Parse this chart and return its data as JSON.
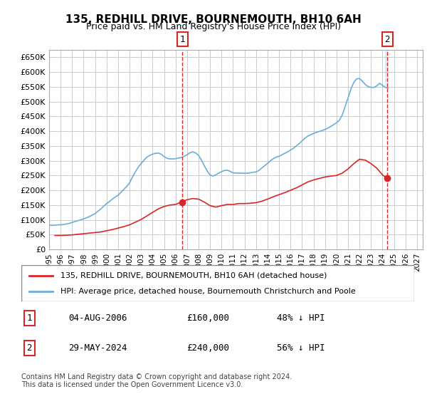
{
  "title": "135, REDHILL DRIVE, BOURNEMOUTH, BH10 6AH",
  "subtitle": "Price paid vs. HM Land Registry's House Price Index (HPI)",
  "hpi_color": "#6baed6",
  "price_color": "#d62728",
  "marker_color": "#d62728",
  "annotation_box_color": "#d62728",
  "grid_color": "#cccccc",
  "background_color": "#ffffff",
  "plot_background": "#ffffff",
  "ylim": [
    0,
    675000
  ],
  "yticks": [
    0,
    50000,
    100000,
    150000,
    200000,
    250000,
    300000,
    350000,
    400000,
    450000,
    500000,
    550000,
    600000,
    650000
  ],
  "xlim_start": 1995.0,
  "xlim_end": 2027.5,
  "xticks": [
    1995,
    1996,
    1997,
    1998,
    1999,
    2000,
    2001,
    2002,
    2003,
    2004,
    2005,
    2006,
    2007,
    2008,
    2009,
    2010,
    2011,
    2012,
    2013,
    2014,
    2015,
    2016,
    2017,
    2018,
    2019,
    2020,
    2021,
    2022,
    2023,
    2024,
    2025,
    2026,
    2027
  ],
  "legend_entries": [
    "135, REDHILL DRIVE, BOURNEMOUTH, BH10 6AH (detached house)",
    "HPI: Average price, detached house, Bournemouth Christchurch and Poole"
  ],
  "annotation1": {
    "label": "1",
    "x": 2006.58,
    "price_y": 160000,
    "hpi_y": 305000
  },
  "annotation2": {
    "label": "2",
    "x": 2024.41,
    "price_y": 240000,
    "hpi_y": 545000
  },
  "table": [
    {
      "num": "1",
      "date": "04-AUG-2006",
      "price": "£160,000",
      "pct": "48% ↓ HPI"
    },
    {
      "num": "2",
      "date": "29-MAY-2024",
      "price": "£240,000",
      "pct": "56% ↓ HPI"
    }
  ],
  "footer": "Contains HM Land Registry data © Crown copyright and database right 2024.\nThis data is licensed under the Open Government Licence v3.0.",
  "hpi_data_x": [
    1995.0,
    1995.25,
    1995.5,
    1995.75,
    1996.0,
    1996.25,
    1996.5,
    1996.75,
    1997.0,
    1997.25,
    1997.5,
    1997.75,
    1998.0,
    1998.25,
    1998.5,
    1998.75,
    1999.0,
    1999.25,
    1999.5,
    1999.75,
    2000.0,
    2000.25,
    2000.5,
    2000.75,
    2001.0,
    2001.25,
    2001.5,
    2001.75,
    2002.0,
    2002.25,
    2002.5,
    2002.75,
    2003.0,
    2003.25,
    2003.5,
    2003.75,
    2004.0,
    2004.25,
    2004.5,
    2004.75,
    2005.0,
    2005.25,
    2005.5,
    2005.75,
    2006.0,
    2006.25,
    2006.5,
    2006.75,
    2007.0,
    2007.25,
    2007.5,
    2007.75,
    2008.0,
    2008.25,
    2008.5,
    2008.75,
    2009.0,
    2009.25,
    2009.5,
    2009.75,
    2010.0,
    2010.25,
    2010.5,
    2010.75,
    2011.0,
    2011.25,
    2011.5,
    2011.75,
    2012.0,
    2012.25,
    2012.5,
    2012.75,
    2013.0,
    2013.25,
    2013.5,
    2013.75,
    2014.0,
    2014.25,
    2014.5,
    2014.75,
    2015.0,
    2015.25,
    2015.5,
    2015.75,
    2016.0,
    2016.25,
    2016.5,
    2016.75,
    2017.0,
    2017.25,
    2017.5,
    2017.75,
    2018.0,
    2018.25,
    2018.5,
    2018.75,
    2019.0,
    2019.25,
    2019.5,
    2019.75,
    2020.0,
    2020.25,
    2020.5,
    2020.75,
    2021.0,
    2021.25,
    2021.5,
    2021.75,
    2022.0,
    2022.25,
    2022.5,
    2022.75,
    2023.0,
    2023.25,
    2023.5,
    2023.75,
    2024.0,
    2024.25,
    2024.5
  ],
  "hpi_data_y": [
    83000,
    81000,
    82000,
    83000,
    83000,
    84000,
    86000,
    88000,
    91000,
    94000,
    97000,
    100000,
    103000,
    107000,
    111000,
    116000,
    121000,
    129000,
    137000,
    146000,
    155000,
    162000,
    170000,
    177000,
    183000,
    193000,
    203000,
    213000,
    225000,
    245000,
    262000,
    278000,
    290000,
    302000,
    312000,
    318000,
    322000,
    325000,
    326000,
    322000,
    314000,
    308000,
    306000,
    306000,
    307000,
    309000,
    311000,
    315000,
    320000,
    327000,
    330000,
    326000,
    318000,
    302000,
    283000,
    265000,
    252000,
    248000,
    252000,
    258000,
    263000,
    267000,
    268000,
    264000,
    259000,
    258000,
    258000,
    258000,
    257000,
    258000,
    259000,
    261000,
    262000,
    267000,
    275000,
    283000,
    291000,
    300000,
    307000,
    312000,
    315000,
    320000,
    325000,
    330000,
    336000,
    342000,
    350000,
    358000,
    367000,
    376000,
    383000,
    388000,
    392000,
    396000,
    399000,
    402000,
    406000,
    410000,
    416000,
    422000,
    428000,
    437000,
    455000,
    483000,
    512000,
    542000,
    565000,
    577000,
    578000,
    569000,
    558000,
    551000,
    548000,
    548000,
    553000,
    562000,
    555000,
    548000,
    545000
  ],
  "price_data_x": [
    1995.5,
    1996.0,
    1996.5,
    1997.0,
    1997.25,
    1997.75,
    1998.0,
    1998.5,
    1999.0,
    1999.5,
    2000.0,
    2000.5,
    2001.0,
    2001.5,
    2002.0,
    2002.5,
    2003.0,
    2003.5,
    2004.0,
    2004.5,
    2005.0,
    2005.5,
    2006.0,
    2006.5,
    2007.0,
    2007.5,
    2008.0,
    2008.5,
    2009.0,
    2009.5,
    2010.0,
    2010.5,
    2011.0,
    2011.5,
    2012.0,
    2012.5,
    2013.0,
    2013.5,
    2014.0,
    2014.5,
    2015.0,
    2015.5,
    2016.0,
    2016.5,
    2017.0,
    2017.5,
    2018.0,
    2018.5,
    2019.0,
    2019.5,
    2020.0,
    2020.5,
    2021.0,
    2021.5,
    2022.0,
    2022.5,
    2023.0,
    2023.5,
    2024.0,
    2024.41
  ],
  "price_data_y": [
    47000,
    47000,
    48000,
    49000,
    50000,
    52000,
    53000,
    55000,
    57000,
    59000,
    63000,
    67000,
    72000,
    77000,
    83000,
    92000,
    101000,
    113000,
    125000,
    137000,
    145000,
    150000,
    152000,
    160000,
    168000,
    172000,
    170000,
    160000,
    148000,
    143000,
    148000,
    152000,
    152000,
    155000,
    155000,
    156000,
    158000,
    163000,
    170000,
    178000,
    185000,
    192000,
    200000,
    208000,
    218000,
    228000,
    235000,
    240000,
    245000,
    248000,
    250000,
    258000,
    272000,
    290000,
    305000,
    302000,
    290000,
    275000,
    252000,
    240000
  ]
}
